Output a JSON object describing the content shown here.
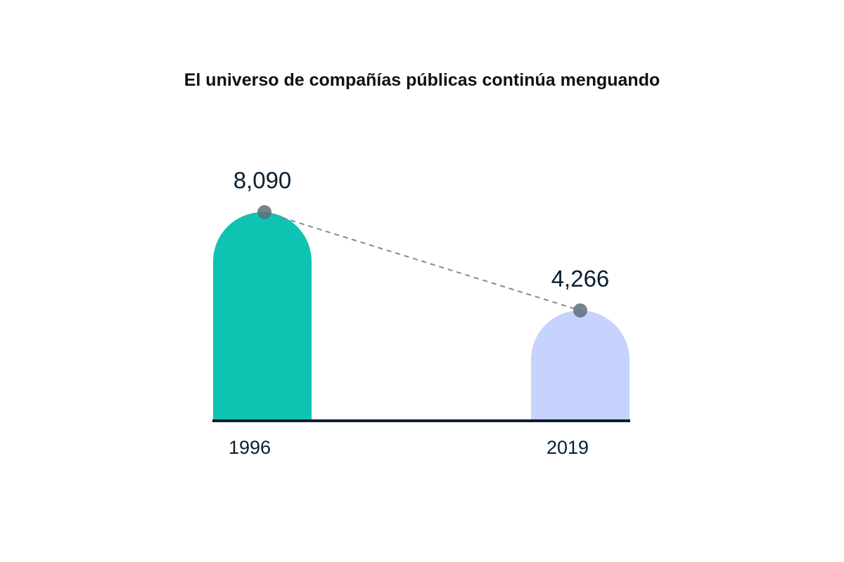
{
  "chart_data": {
    "type": "bar",
    "title": "El universo de compañías públicas continúa menguando",
    "categories": [
      "1996",
      "2019"
    ],
    "values": [
      8090,
      4266
    ],
    "value_labels": [
      "8,090",
      "4,266"
    ],
    "bar_colors": [
      "#0fc3b3",
      "#c6d3fd"
    ],
    "trend_line": "dashed",
    "grid": false,
    "legend": "none"
  },
  "colors": {
    "axis": "#0b1e33",
    "marker": "#5d7079",
    "trend": "#888888",
    "text": "#0b1e33"
  }
}
